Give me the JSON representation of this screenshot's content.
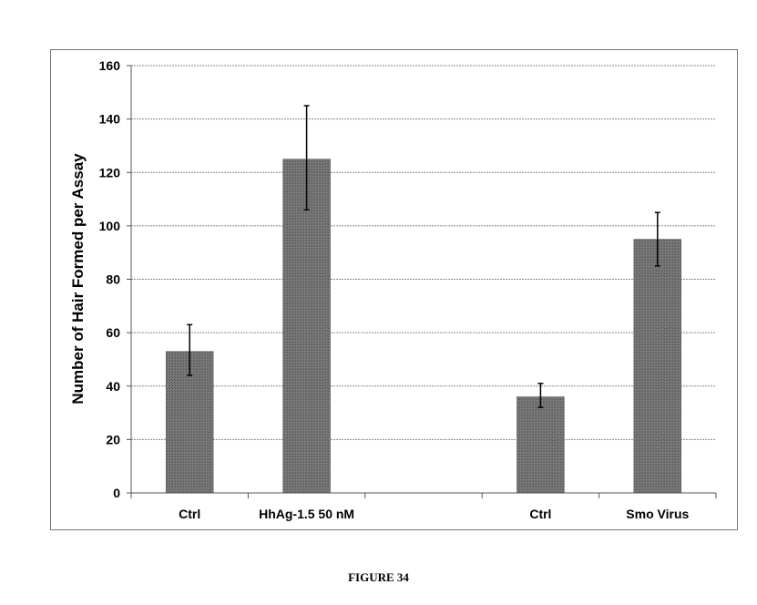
{
  "figure_caption": "FIGURE 34",
  "chart_data": {
    "type": "bar",
    "ylabel": "Number of Hair Formed per Assay",
    "ylim": [
      0,
      160
    ],
    "yticks": [
      0,
      20,
      40,
      60,
      80,
      100,
      120,
      140,
      160
    ],
    "grid": true,
    "categories": [
      "Ctrl",
      "HhAg-1.5 50 nM",
      "",
      "Ctrl",
      "Smo Virus"
    ],
    "values": [
      53,
      125,
      null,
      36,
      95
    ],
    "error_low": [
      44,
      106,
      null,
      32,
      85
    ],
    "error_high": [
      63,
      145,
      null,
      41,
      105
    ],
    "bar_color": "#6e6e6e"
  }
}
